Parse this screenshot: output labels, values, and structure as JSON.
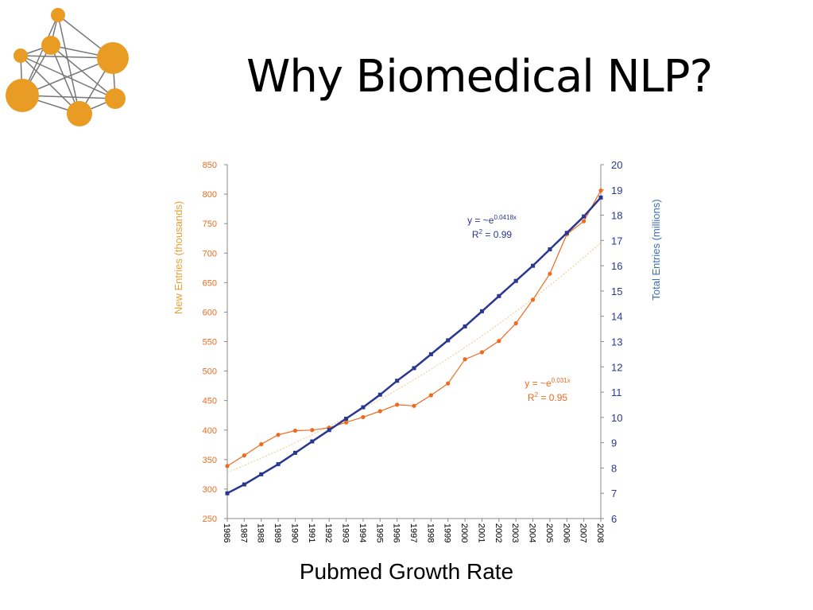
{
  "slide": {
    "title": "Why Biomedical NLP?",
    "caption": "Pubmed Growth Rate"
  },
  "colors": {
    "logo": "#E89C24",
    "logo_lines": "#777777",
    "new_entries": "#EE6A1E",
    "total_entries": "#2A3791",
    "left_axis_label": "#E8A033",
    "right_axis_label": "#3A6FB5"
  },
  "chart_data": {
    "type": "line",
    "title": "",
    "x": [
      "1986",
      "1987",
      "1988",
      "1989",
      "1990",
      "1991",
      "1992",
      "1993",
      "1994",
      "1995",
      "1996",
      "1997",
      "1998",
      "1999",
      "2000",
      "2001",
      "2002",
      "2003",
      "2004",
      "2005",
      "2006",
      "2007",
      "2008"
    ],
    "ylabel_left": "New Entries  (thousands)",
    "ylabel_right": "Total Entries  (millions)",
    "ylim_left": [
      250,
      850
    ],
    "ylim_right": [
      6,
      20
    ],
    "yticks_left": [
      250,
      300,
      350,
      400,
      450,
      500,
      550,
      600,
      650,
      700,
      750,
      800,
      850
    ],
    "yticks_right": [
      6,
      7,
      8,
      9,
      10,
      11,
      12,
      13,
      14,
      15,
      16,
      17,
      18,
      19,
      20
    ],
    "grid": false,
    "series": [
      {
        "name": "New Entries",
        "axis": "left",
        "values": [
          339,
          357,
          376,
          392,
          399,
          400,
          404,
          413,
          422,
          432,
          443,
          441,
          459,
          479,
          520,
          532,
          551,
          581,
          621,
          665,
          732,
          754,
          806
        ],
        "trendline": {
          "equation_prefix": "y = ~e",
          "equation_exponent": "0.031x",
          "r2_prefix": "R",
          "r2_suffix": " = 0.95"
        }
      },
      {
        "name": "Total Entries",
        "axis": "right",
        "values": [
          7.0,
          7.35,
          7.75,
          8.15,
          8.6,
          9.05,
          9.5,
          9.95,
          10.4,
          10.9,
          11.45,
          11.95,
          12.5,
          13.05,
          13.6,
          14.2,
          14.8,
          15.4,
          16.0,
          16.65,
          17.3,
          17.95,
          18.7
        ],
        "trendline": {
          "equation_prefix": "y = ~e",
          "equation_exponent": "0.0418x",
          "r2_prefix": "R",
          "r2_suffix": " = 0.99"
        }
      }
    ]
  }
}
